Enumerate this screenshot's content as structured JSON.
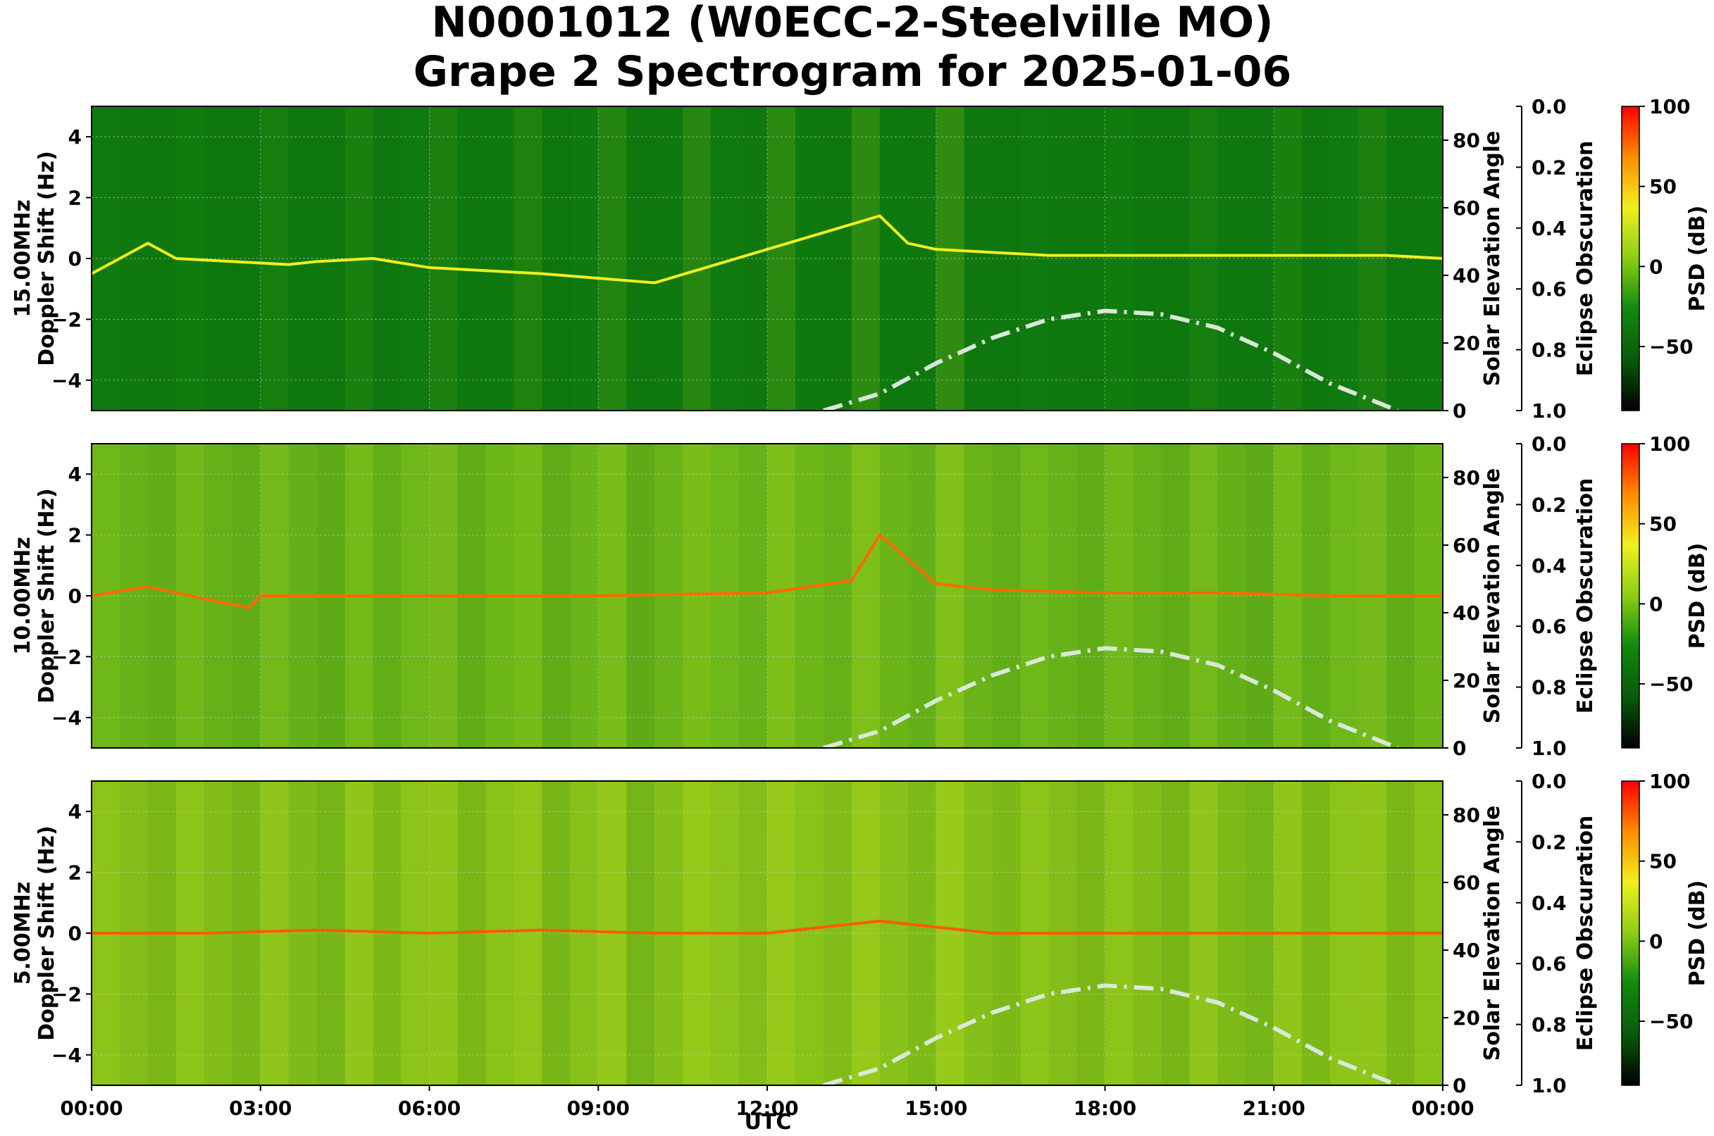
{
  "title_line1": "N0001012 (W0ECC-2-Steelville MO)",
  "title_line2": "Grape 2 Spectrogram for 2025-01-06",
  "chart_data": {
    "type": "heatmap",
    "x_label": "UTC",
    "x_ticks": [
      "00:00",
      "03:00",
      "06:00",
      "09:00",
      "12:00",
      "15:00",
      "18:00",
      "21:00",
      "00:00"
    ],
    "y_label": "Doppler Shift (Hz)",
    "y_ticks": [
      "4",
      "2",
      "0",
      "−2",
      "−4"
    ],
    "ylim": [
      -5,
      5
    ],
    "right_axis_label": "Solar Elevation Angle",
    "right_ticks": [
      "80",
      "60",
      "40",
      "20",
      "0"
    ],
    "right_lim": [
      0,
      90
    ],
    "obscuration_label": "Eclipse Obscuration",
    "obscuration_ticks": [
      "0.0",
      "0.2",
      "0.4",
      "0.6",
      "0.8",
      "1.0"
    ],
    "colorbar_label": "PSD (dB)",
    "colorbar_ticks": [
      "100",
      "50",
      "0",
      "−50"
    ],
    "colorbar_range": [
      -90,
      100
    ],
    "colormap": [
      "#000000",
      "#0a5a0a",
      "#0f8a0f",
      "#8ccd14",
      "#f0f01e",
      "#ff8c00",
      "#ff0000"
    ],
    "solar_elevation_curve": {
      "x_hours": [
        13.0,
        14.0,
        15.0,
        16.0,
        17.0,
        18.0,
        19.0,
        20.0,
        21.0,
        22.0,
        23.2
      ],
      "y_degrees": [
        0,
        5,
        14,
        21.5,
        27,
        29.5,
        28.5,
        24.5,
        17,
        8,
        0
      ],
      "color": "#d9e8d9"
    },
    "panels": [
      {
        "freq_label": "15.00MHz",
        "background": "#0f7a0f",
        "doppler_trace_x_hours": [
          0,
          0.5,
          1,
          1.5,
          3.5,
          4,
          5,
          6,
          8,
          10,
          14,
          14.5,
          15,
          16,
          17,
          18,
          19,
          20,
          21,
          22,
          23,
          24
        ],
        "doppler_trace_hz": [
          -0.5,
          0,
          0.5,
          0,
          -0.2,
          -0.1,
          0,
          -0.3,
          -0.5,
          -0.8,
          1.4,
          0.5,
          0.3,
          0.2,
          0.1,
          0.1,
          0.1,
          0.1,
          0.1,
          0.1,
          0.1,
          0
        ],
        "trace_color": "#f0f01e"
      },
      {
        "freq_label": "10.00MHz",
        "background": "#6fb81a",
        "doppler_trace_x_hours": [
          0,
          1,
          2,
          2.8,
          3,
          6,
          9,
          12,
          13.5,
          14,
          15,
          16,
          18,
          20,
          22,
          24
        ],
        "doppler_trace_hz": [
          0,
          0.3,
          -0.1,
          -0.4,
          0,
          0,
          0,
          0.1,
          0.5,
          2.0,
          0.4,
          0.2,
          0.1,
          0.1,
          0,
          0
        ],
        "trace_color": "#ff6a00"
      },
      {
        "freq_label": "5.00MHz",
        "background": "#8cc41a",
        "doppler_trace_x_hours": [
          0,
          2,
          4,
          6,
          8,
          10,
          12,
          13,
          14,
          16,
          18,
          20,
          22,
          24
        ],
        "doppler_trace_hz": [
          0,
          0,
          0.1,
          0,
          0.1,
          0,
          0,
          0.2,
          0.4,
          0,
          0,
          0,
          0,
          0
        ],
        "trace_color": "#ff5a00"
      }
    ]
  }
}
